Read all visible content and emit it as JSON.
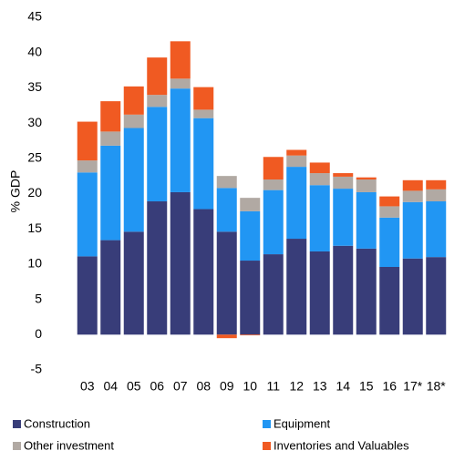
{
  "chart_data": {
    "type": "stacked_bar",
    "y_label": "% GDP",
    "categories": [
      "03",
      "04",
      "05",
      "06",
      "07",
      "08",
      "09",
      "10",
      "11",
      "12",
      "13",
      "14",
      "15",
      "16",
      "17*",
      "18*"
    ],
    "series": [
      {
        "name": "Construction",
        "color": "#383d79",
        "values": [
          11.1,
          13.4,
          14.6,
          18.9,
          20.2,
          17.8,
          14.6,
          10.5,
          11.4,
          13.6,
          11.8,
          12.6,
          12.2,
          9.6,
          10.8,
          11.0
        ]
      },
      {
        "name": "Equipment",
        "color": "#2196f3",
        "values": [
          11.9,
          13.4,
          14.7,
          13.4,
          14.7,
          12.9,
          6.2,
          7.0,
          9.1,
          10.2,
          9.4,
          8.1,
          8.0,
          7.0,
          8.0,
          7.9
        ]
      },
      {
        "name": "Other investment",
        "color": "#b1a9a3",
        "values": [
          1.7,
          2.0,
          1.9,
          1.7,
          1.4,
          1.2,
          1.7,
          1.9,
          1.5,
          1.6,
          1.7,
          1.7,
          1.8,
          1.6,
          1.6,
          1.7
        ]
      },
      {
        "name": "Inventories and Valuables",
        "color": "#f05a22",
        "values": [
          5.5,
          4.3,
          4.0,
          5.3,
          5.3,
          3.2,
          -0.5,
          -0.1,
          3.2,
          0.8,
          1.5,
          0.5,
          0.3,
          1.4,
          1.5,
          1.3
        ]
      }
    ],
    "ylim": [
      -5,
      45
    ],
    "yticks": [
      -5,
      0,
      5,
      10,
      15,
      20,
      25,
      30,
      35,
      40,
      45
    ]
  }
}
